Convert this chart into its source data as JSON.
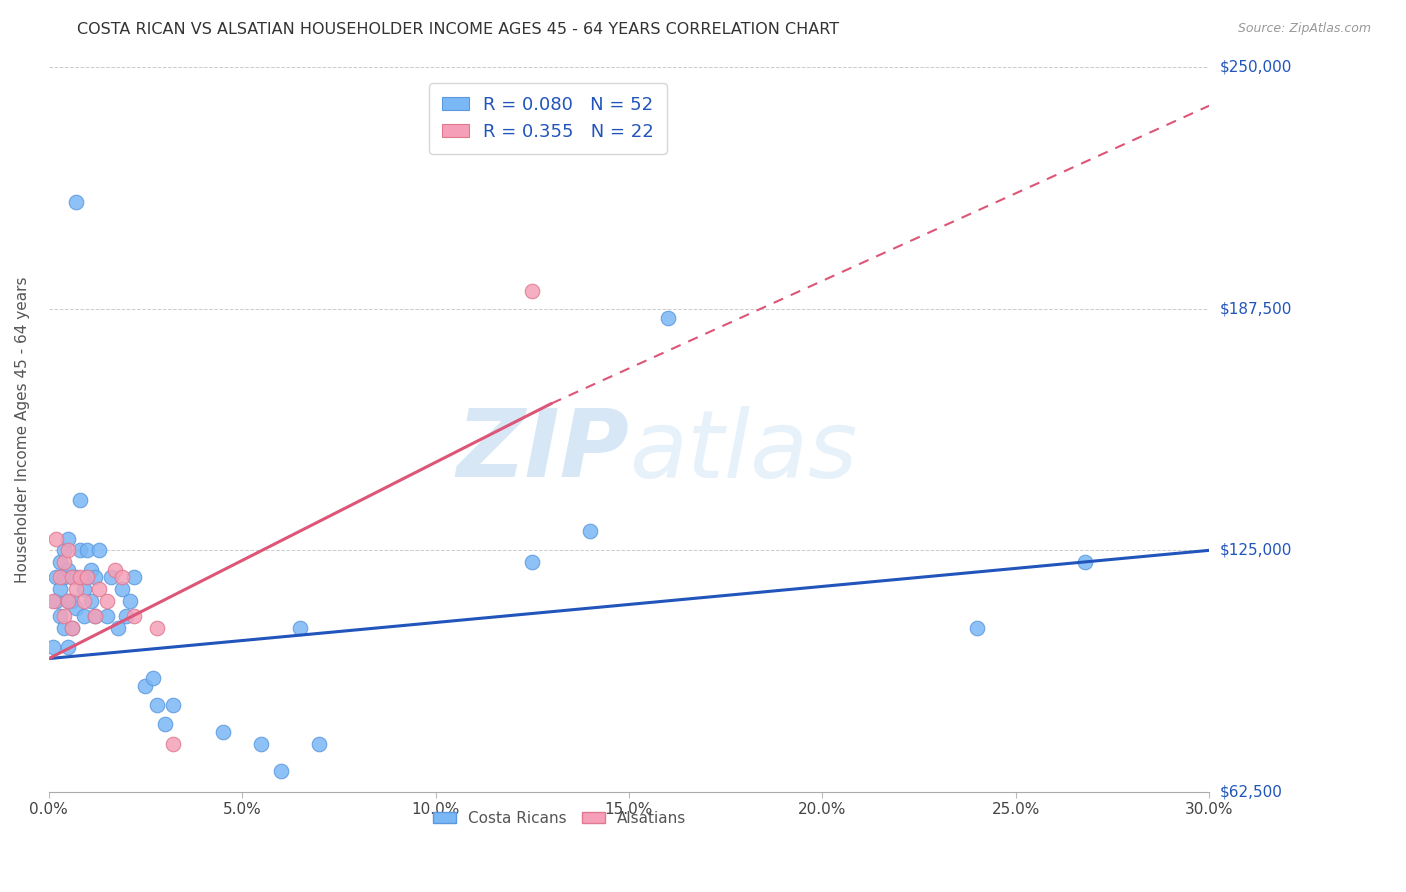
{
  "title": "COSTA RICAN VS ALSATIAN HOUSEHOLDER INCOME AGES 45 - 64 YEARS CORRELATION CHART",
  "source": "Source: ZipAtlas.com",
  "xlabel_ticks": [
    "0.0%",
    "5.0%",
    "10.0%",
    "15.0%",
    "20.0%",
    "25.0%",
    "30.0%"
  ],
  "ylabel_ticks": [
    "$62,500",
    "$125,000",
    "$187,500",
    "$250,000"
  ],
  "ylabel_label": "Householder Income Ages 45 - 64 years",
  "xlim": [
    0.0,
    0.3
  ],
  "ylim": [
    62500,
    250000
  ],
  "watermark_zip": "ZIP",
  "watermark_atlas": "atlas",
  "cr_color": "#7ab8f5",
  "cr_edge": "#5a98e0",
  "als_color": "#f5a0b8",
  "als_edge": "#e07890",
  "cr_line_color": "#2255bb",
  "als_line_color": "#dd5577",
  "background_color": "#ffffff",
  "grid_color": "#cccccc",
  "costa_rican_x": [
    0.001,
    0.002,
    0.002,
    0.003,
    0.003,
    0.003,
    0.004,
    0.004,
    0.004,
    0.005,
    0.005,
    0.005,
    0.005,
    0.006,
    0.006,
    0.006,
    0.007,
    0.007,
    0.007,
    0.008,
    0.008,
    0.009,
    0.009,
    0.01,
    0.01,
    0.011,
    0.011,
    0.012,
    0.012,
    0.013,
    0.015,
    0.016,
    0.018,
    0.019,
    0.02,
    0.021,
    0.022,
    0.025,
    0.027,
    0.028,
    0.03,
    0.032,
    0.045,
    0.055,
    0.06,
    0.065,
    0.07,
    0.125,
    0.14,
    0.16,
    0.24,
    0.268
  ],
  "costa_rican_y": [
    100000,
    112000,
    118000,
    108000,
    115000,
    122000,
    105000,
    118000,
    125000,
    100000,
    112000,
    120000,
    128000,
    105000,
    118000,
    112000,
    215000,
    110000,
    118000,
    138000,
    125000,
    115000,
    108000,
    118000,
    125000,
    112000,
    120000,
    108000,
    118000,
    125000,
    108000,
    118000,
    105000,
    115000,
    108000,
    112000,
    118000,
    90000,
    92000,
    85000,
    80000,
    85000,
    78000,
    75000,
    68000,
    105000,
    75000,
    122000,
    130000,
    185000,
    105000,
    122000
  ],
  "alsatian_x": [
    0.001,
    0.002,
    0.003,
    0.004,
    0.004,
    0.005,
    0.005,
    0.006,
    0.006,
    0.007,
    0.008,
    0.009,
    0.01,
    0.012,
    0.013,
    0.015,
    0.017,
    0.019,
    0.022,
    0.028,
    0.032,
    0.125
  ],
  "alsatian_y": [
    112000,
    128000,
    118000,
    108000,
    122000,
    112000,
    125000,
    105000,
    118000,
    115000,
    118000,
    112000,
    118000,
    108000,
    115000,
    112000,
    120000,
    118000,
    108000,
    105000,
    75000,
    192000
  ]
}
